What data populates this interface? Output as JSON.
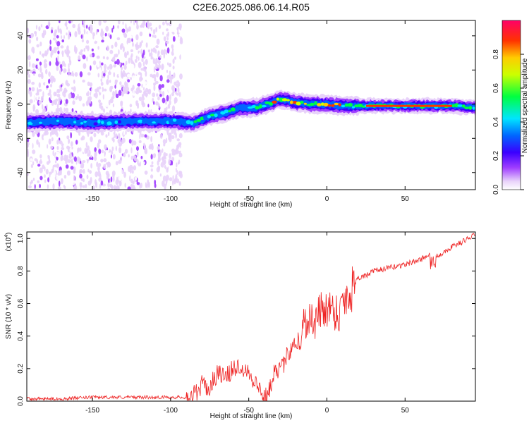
{
  "title": "C2E6.2025.086.06.14.R05",
  "chart_data": [
    {
      "type": "heatmap",
      "name": "spectrogram",
      "xlabel": "Height of straight line (km)",
      "ylabel": "Frequency (Hz)",
      "xlim": [
        -192,
        95
      ],
      "ylim": [
        -50,
        49
      ],
      "x_ticks": [
        -150,
        -100,
        -50,
        0,
        50
      ],
      "y_ticks": [
        -40,
        -20,
        0,
        20,
        40
      ],
      "ridge": {
        "x": [
          -192,
          -170,
          -150,
          -130,
          -110,
          -95,
          -85,
          -75,
          -65,
          -55,
          -45,
          -35,
          -30,
          -25,
          -20,
          -10,
          0,
          10,
          20,
          40,
          60,
          80,
          95
        ],
        "y": [
          -11,
          -10,
          -11,
          -10,
          -10,
          -10,
          -11,
          -7,
          -5,
          -2,
          -2,
          1,
          3,
          2,
          1,
          0,
          0,
          -1,
          -1,
          -1,
          -1,
          -1,
          -2
        ]
      },
      "noise_region_x": [
        -192,
        -93
      ],
      "colorbar": {
        "label": "Normalized spectral amplitude",
        "ticks": [
          0.0,
          0.2,
          0.4,
          0.6,
          0.8
        ],
        "range": [
          0,
          1
        ],
        "colors": [
          "#ffffff",
          "#e2c8f7",
          "#9900ff",
          "#3300ff",
          "#0000ff",
          "#00ffff",
          "#00ff00",
          "#ffff00",
          "#ff8800",
          "#ff0000",
          "#ff0066"
        ]
      }
    },
    {
      "type": "line",
      "name": "snr",
      "xlabel": "Height of straight line (km)",
      "ylabel": "SNR (10 * v/v)",
      "y_scale_label": "(x10",
      "y_scale_exp": "4",
      "xlim": [
        -192,
        95
      ],
      "ylim": [
        0,
        1.04
      ],
      "x_ticks": [
        -150,
        -100,
        -50,
        0,
        50
      ],
      "y_ticks": [
        0.0,
        0.2,
        0.4,
        0.6,
        0.8,
        1.0
      ],
      "series": [
        {
          "name": "SNR",
          "color": "#ee2222",
          "x": [
            -192,
            -170,
            -150,
            -120,
            -100,
            -90,
            -85,
            -80,
            -75,
            -70,
            -65,
            -60,
            -55,
            -50,
            -45,
            -42,
            -40,
            -38,
            -36,
            -33,
            -30,
            -27,
            -24,
            -20,
            -17,
            -15,
            -12,
            -10,
            -8,
            -5,
            0,
            5,
            8,
            10,
            12,
            15,
            17,
            20,
            25,
            30,
            40,
            50,
            60,
            65,
            68,
            72,
            80,
            85,
            90,
            95
          ],
          "y": [
            0.01,
            0.01,
            0.02,
            0.02,
            0.02,
            0.02,
            0.04,
            0.1,
            0.08,
            0.18,
            0.14,
            0.2,
            0.22,
            0.18,
            0.1,
            0.06,
            0.02,
            0.03,
            0.1,
            0.22,
            0.18,
            0.24,
            0.32,
            0.38,
            0.35,
            0.48,
            0.5,
            0.52,
            0.46,
            0.55,
            0.58,
            0.56,
            0.53,
            0.62,
            0.64,
            0.66,
            0.72,
            0.76,
            0.77,
            0.8,
            0.82,
            0.84,
            0.87,
            0.9,
            0.89,
            0.9,
            0.95,
            0.97,
            1.0,
            1.02
          ]
        }
      ]
    }
  ]
}
